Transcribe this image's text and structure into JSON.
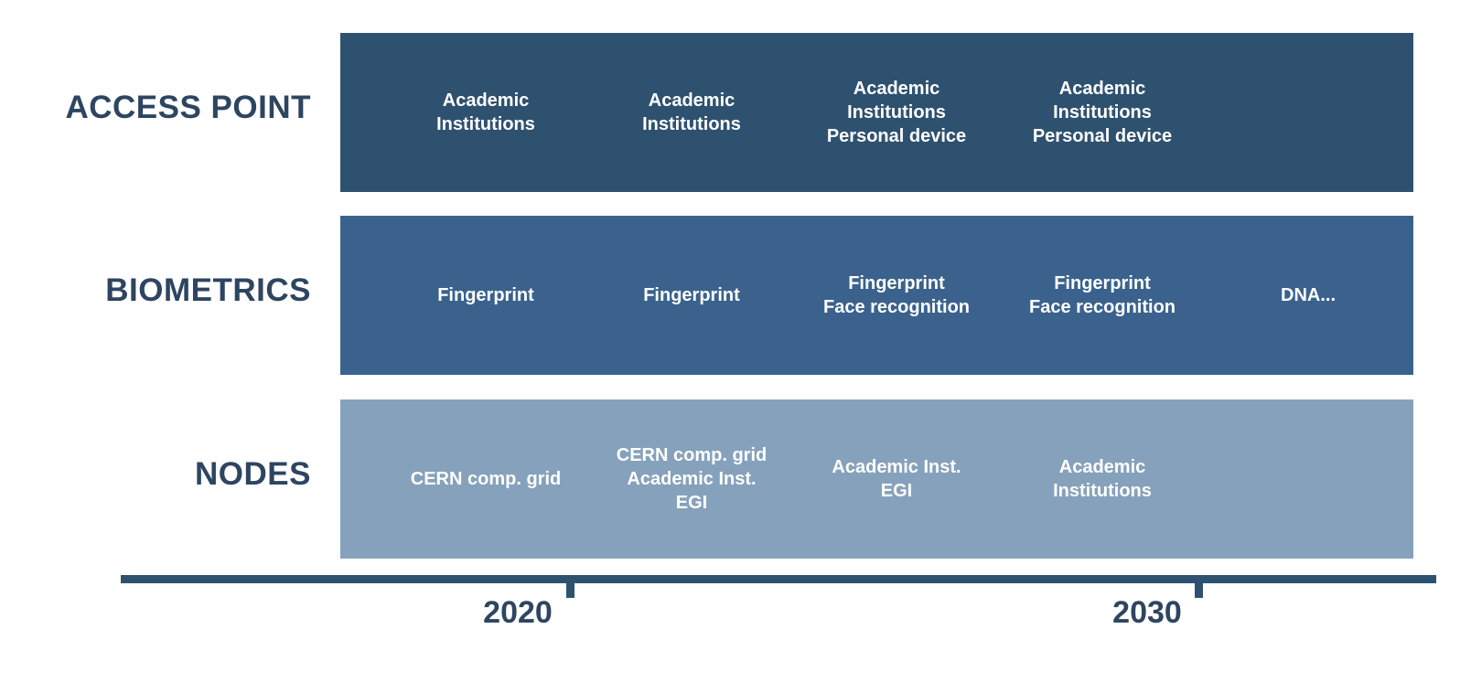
{
  "rows": [
    {
      "label": "ACCESS POINT",
      "cells": [
        [
          "Academic",
          "Institutions"
        ],
        [
          "Academic",
          "Institutions"
        ],
        [
          "Academic",
          "Institutions",
          "Personal device"
        ],
        [
          "Academic",
          "Institutions",
          "Personal device"
        ],
        []
      ]
    },
    {
      "label": "BIOMETRICS",
      "cells": [
        [
          "Fingerprint"
        ],
        [
          "Fingerprint"
        ],
        [
          "Fingerprint",
          "Face recognition"
        ],
        [
          "Fingerprint",
          "Face recognition"
        ],
        [
          "DNA..."
        ]
      ]
    },
    {
      "label": "NODES",
      "cells": [
        [
          "CERN comp. grid"
        ],
        [
          "CERN comp. grid",
          "Academic Inst.",
          "EGI"
        ],
        [
          "Academic Inst.",
          "EGI"
        ],
        [
          "Academic",
          "Institutions"
        ],
        []
      ]
    }
  ],
  "timeline": {
    "ticks": [
      "2020",
      "2030"
    ]
  },
  "colors": {
    "access_band": "#2f5170",
    "biometrics_band": "#3a628d",
    "nodes_band": "#86a1bb",
    "label_text": "#2d4560",
    "axis": "#2f5170"
  }
}
